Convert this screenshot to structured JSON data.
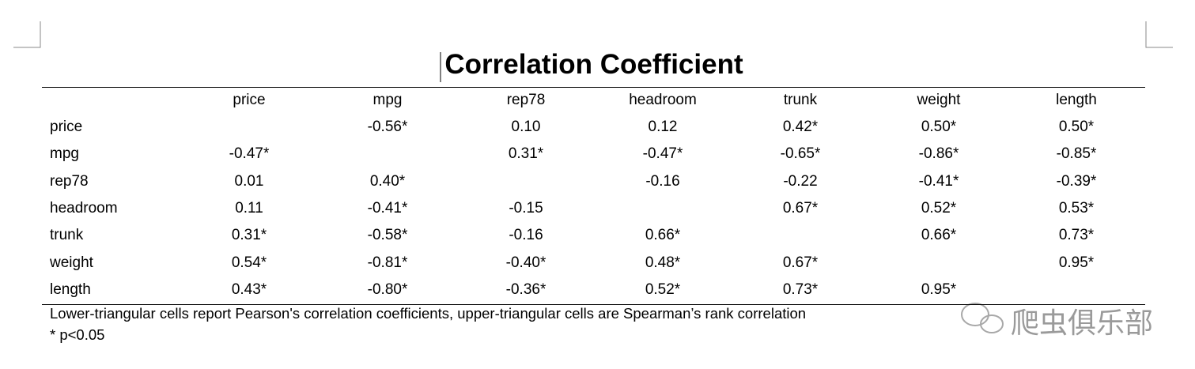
{
  "title": "Correlation Coefficient",
  "table": {
    "header": [
      null,
      "price",
      "mpg",
      "rep78",
      "headroom",
      "trunk",
      "weight",
      "length"
    ],
    "rows": [
      [
        "price",
        null,
        "-0.56*",
        "0.10",
        "0.12",
        "0.42*",
        "0.50*",
        "0.50*"
      ],
      [
        "mpg",
        "-0.47*",
        null,
        "0.31*",
        "-0.47*",
        "-0.65*",
        "-0.86*",
        "-0.85*"
      ],
      [
        "rep78",
        "0.01",
        "0.40*",
        null,
        "-0.16",
        "-0.22",
        "-0.41*",
        "-0.39*"
      ],
      [
        "headroom",
        "0.11",
        "-0.41*",
        "-0.15",
        null,
        "0.67*",
        "0.52*",
        "0.53*"
      ],
      [
        "trunk",
        "0.31*",
        "-0.58*",
        "-0.16",
        "0.66*",
        null,
        "0.66*",
        "0.73*"
      ],
      [
        "weight",
        "0.54*",
        "-0.81*",
        "-0.40*",
        "0.48*",
        "0.67*",
        null,
        "0.95*"
      ],
      [
        "length",
        "0.43*",
        "-0.80*",
        "-0.36*",
        "0.52*",
        "0.73*",
        "0.95*",
        null
      ]
    ]
  },
  "notes": [
    "Lower-triangular cells report Pearson's correlation coefficients, upper-triangular cells are Spearman’s rank correlation",
    "* p<0.05"
  ],
  "watermark": "爬虫俱乐部"
}
